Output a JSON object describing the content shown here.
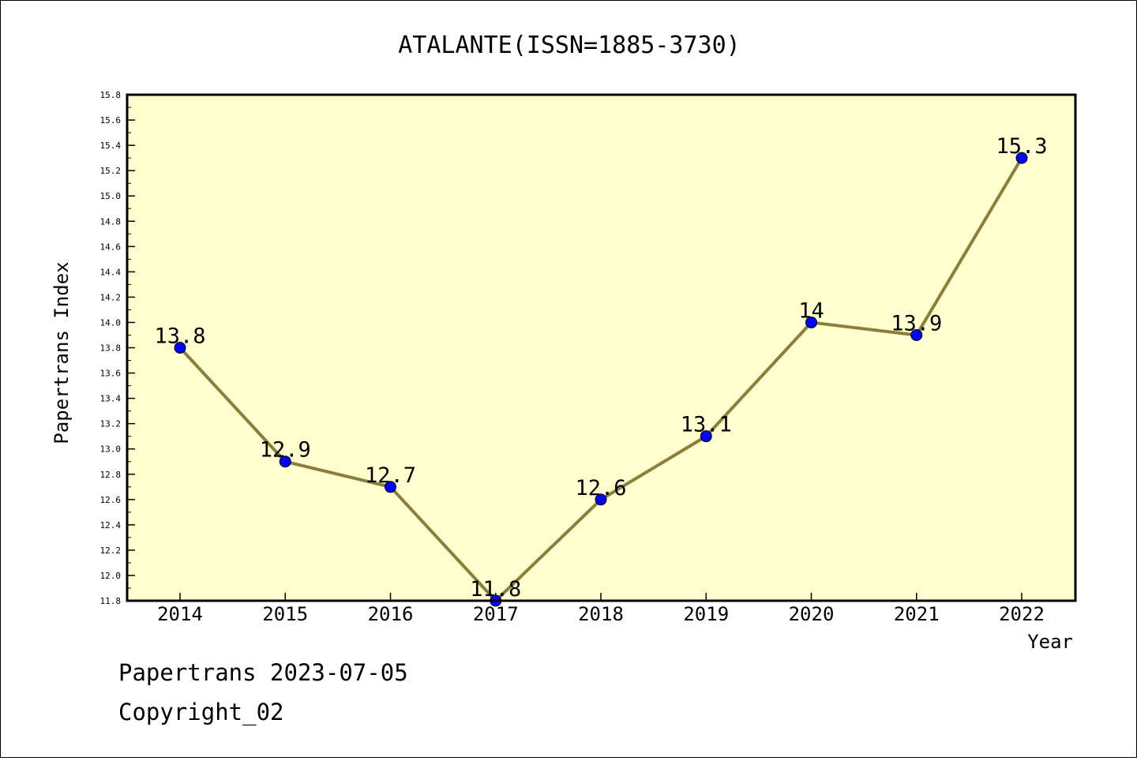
{
  "chart_data": {
    "type": "line",
    "title": "ATALANTE(ISSN=1885-3730)",
    "xlabel": "Year",
    "ylabel": "Papertrans Index",
    "categories": [
      "2014",
      "2015",
      "2016",
      "2017",
      "2018",
      "2019",
      "2020",
      "2021",
      "2022"
    ],
    "series": [
      {
        "values": [
          13.8,
          12.9,
          12.7,
          11.8,
          12.6,
          13.1,
          14.0,
          13.9,
          15.3
        ],
        "labels": [
          "13.8",
          "12.9",
          "12.7",
          "11.8",
          "12.6",
          "13.1",
          "14",
          "13.9",
          "15.3"
        ],
        "line_color": "#8b7d3a",
        "marker_color": "#0000ff"
      }
    ],
    "ylim": [
      11.8,
      15.8
    ],
    "yticks": [
      "11.8",
      "12.0",
      "12.2",
      "12.4",
      "12.6",
      "12.8",
      "13.0",
      "13.2",
      "13.4",
      "13.6",
      "13.8",
      "14.0",
      "14.2",
      "14.4",
      "14.6",
      "14.8",
      "15.0",
      "15.2",
      "15.4",
      "15.6",
      "15.8"
    ],
    "plot_background": "#ffffd0",
    "grid": false,
    "legend": "none"
  },
  "footer": {
    "line1": "Papertrans 2023-07-05",
    "line2": "Copyright_02"
  }
}
